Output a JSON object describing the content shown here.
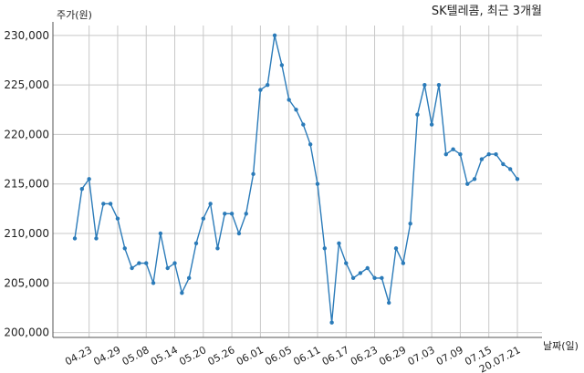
{
  "chart_data": {
    "type": "line",
    "title": "SK텔레콤, 최근 3개월",
    "ylabel": "주가(원)",
    "xlabel": "날짜(일)",
    "ylim": [
      199500,
      231000
    ],
    "yticks": [
      200000,
      205000,
      210000,
      215000,
      220000,
      225000,
      230000
    ],
    "ytick_labels": [
      "200,000",
      "205,000",
      "210,000",
      "215,000",
      "220,000",
      "225,000",
      "230,000"
    ],
    "xticks": [
      {
        "index": 2,
        "label": "04.23"
      },
      {
        "index": 6,
        "label": "04.29"
      },
      {
        "index": 10,
        "label": "05.08"
      },
      {
        "index": 14,
        "label": "05.14"
      },
      {
        "index": 18,
        "label": "05.20"
      },
      {
        "index": 22,
        "label": "05.26"
      },
      {
        "index": 26,
        "label": "06.01"
      },
      {
        "index": 30,
        "label": "06.05"
      },
      {
        "index": 34,
        "label": "06.11"
      },
      {
        "index": 38,
        "label": "06.17"
      },
      {
        "index": 42,
        "label": "06.23"
      },
      {
        "index": 46,
        "label": "06.29"
      },
      {
        "index": 50,
        "label": "07.03"
      },
      {
        "index": 54,
        "label": "07.09"
      },
      {
        "index": 58,
        "label": "07.15"
      },
      {
        "index": 62,
        "label": "20.07.21"
      }
    ],
    "grid": true,
    "series_color": "#2b7bb9",
    "values": [
      209500,
      214500,
      215500,
      209500,
      213000,
      213000,
      211500,
      208500,
      206500,
      207000,
      207000,
      205000,
      210000,
      206500,
      207000,
      204000,
      205500,
      209000,
      211500,
      213000,
      208500,
      212000,
      212000,
      210000,
      212000,
      216000,
      224500,
      225000,
      230000,
      227000,
      223500,
      222500,
      221000,
      219000,
      215000,
      208500,
      201000,
      209000,
      207000,
      205500,
      206000,
      206500,
      205500,
      205500,
      203000,
      208500,
      207000,
      211000,
      222000,
      225000,
      221000,
      225000,
      218000,
      218500,
      218000,
      215000,
      215500,
      217500,
      218000,
      218000,
      217000,
      216500,
      215500
    ]
  }
}
